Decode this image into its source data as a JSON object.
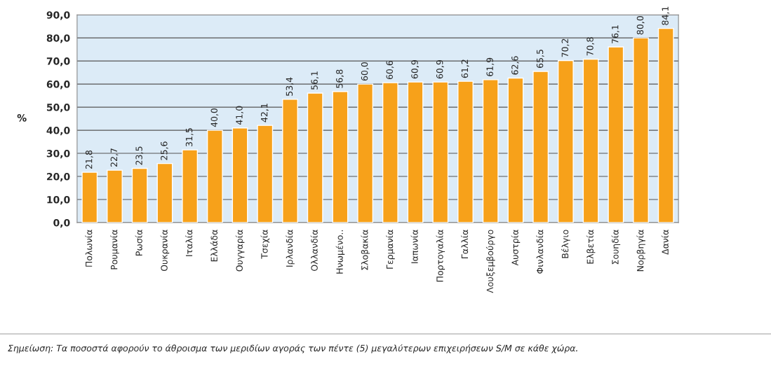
{
  "chart_data": {
    "type": "bar",
    "ylabel": "%",
    "categories": [
      "Πολωνία",
      "Ρουμανία",
      "Ρωσία",
      "Ουκρανία",
      "Ιταλία",
      "Ελλάδα",
      "Ουγγαρία",
      "Τσεχία",
      "Ιρλανδία",
      "Ολλανδία",
      "Ηνωμένο..",
      "Σλοβακία",
      "Γερμανία",
      "Ιαπωνία",
      "Πορτογαλία",
      "Γαλλία",
      "Λουξεμβούργο",
      "Αυστρία",
      "Φινλανδία",
      "Βέλγιο",
      "Ελβετία",
      "Σουηδία",
      "Νορβηγία",
      "Δανία"
    ],
    "values": [
      21.8,
      22.7,
      23.5,
      25.6,
      31.5,
      40.0,
      41.0,
      42.1,
      53.4,
      56.1,
      56.8,
      60.0,
      60.6,
      60.9,
      60.9,
      61.2,
      61.9,
      62.6,
      65.5,
      70.2,
      70.8,
      76.1,
      80.0,
      84.1
    ],
    "value_labels": [
      "21,8",
      "22,7",
      "23,5",
      "25,6",
      "31,5",
      "40,0",
      "41,0",
      "42,1",
      "53,4",
      "56,1",
      "56,8",
      "60,0",
      "60,6",
      "60,9",
      "60,9",
      "61,2",
      "61,9",
      "62,6",
      "65,5",
      "70,2",
      "70,8",
      "76,1",
      "80,0",
      "84,1"
    ],
    "color": "#f7a11a",
    "ylim": [
      0,
      90
    ],
    "yticks": [
      {
        "value": 0,
        "label": "0,0"
      },
      {
        "value": 10,
        "label": "10,0"
      },
      {
        "value": 20,
        "label": "20,0"
      },
      {
        "value": 30,
        "label": "30,0"
      },
      {
        "value": 40,
        "label": "40,0"
      },
      {
        "value": 50,
        "label": "50,0"
      },
      {
        "value": 60,
        "label": "60,0"
      },
      {
        "value": 70,
        "label": "70,0"
      },
      {
        "value": 80,
        "label": "80,0"
      },
      {
        "value": 90,
        "label": "90,0"
      }
    ],
    "grid": "y",
    "annotations": [
      "Σημείωση: Τα ποσοστά αφορούν το άθροισμα των μεριδίων αγοράς των πέντε (5) μεγαλύτερων επιχειρήσεων S/M σε κάθε χώρα."
    ]
  }
}
